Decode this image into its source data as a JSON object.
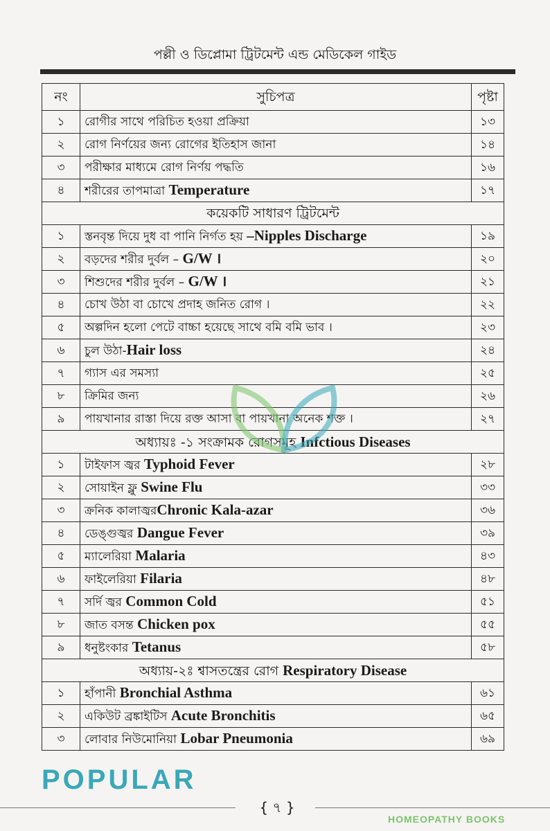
{
  "running_head": "পল্লী ও ডিপ্লোমা ট্রিটমেন্ট এন্ড মেডিকেল গাইড",
  "table_header": {
    "no": "নং",
    "title": "সুচিপত্র",
    "page": "পৃষ্টা"
  },
  "rows": [
    {
      "no": "১",
      "bn": "রোগীর সাথে পরিচিত হওয়া প্রক্রিয়া",
      "en": "",
      "page": "১৩"
    },
    {
      "no": "২",
      "bn": "রোগ নির্ণয়ের জন্য রোগের ইতিহাস জানা",
      "en": "",
      "page": "১৪"
    },
    {
      "no": "৩",
      "bn": "পরীক্ষার মাধ্যমে রোগ নির্ণয় পদ্ধতি",
      "en": "",
      "page": "১৬"
    },
    {
      "no": "৪",
      "bn": "শরীরের তাপমাত্রা ",
      "en": "Temperature",
      "page": "১৭"
    },
    {
      "section": "কয়েকটি সাধারণ ট্রিটমেন্ট"
    },
    {
      "no": "১",
      "bn": "স্তনবৃন্ত দিয়ে দুধ বা পানি নির্গত হয় ",
      "en": "–Nipples Discharge",
      "page": "১৯"
    },
    {
      "no": "২",
      "bn": "বড়দের শরীর দুর্বল – ",
      "en": "G/W ।",
      "page": "২০"
    },
    {
      "no": "৩",
      "bn": "শিশুদের শরীর দুর্বল – ",
      "en": "G/W ।",
      "page": "২১"
    },
    {
      "no": "৪",
      "bn": "চোখ উঠা বা চোখে প্রদাহ জনিত রোগ ।",
      "en": "",
      "page": "২২"
    },
    {
      "no": "৫",
      "bn": "অল্পদিন হলো পেটে বাচ্চা হয়েছে সাথে বমি বমি ভাব ।",
      "en": "",
      "page": "২৩"
    },
    {
      "no": "৬",
      "bn": "চুল উঠা-",
      "en": "Hair loss",
      "page": "২৪"
    },
    {
      "no": "৭",
      "bn": "গ্যাস এর সমস্যা",
      "en": "",
      "page": "২৫"
    },
    {
      "no": "৮",
      "bn": "ক্রিমির জন্য",
      "en": "",
      "page": "২৬"
    },
    {
      "no": "৯",
      "bn": "পায়খানার রাস্তা দিয়ে রক্ত আসা বা পায়খানা অনেক শক্ত ।",
      "en": "",
      "page": "২৭"
    },
    {
      "section": "অধ্যায়ঃ -১ সংক্রামক রোগসমূহ ",
      "section_en": "Infctious Diseases"
    },
    {
      "no": "১",
      "bn": "টাইফাস জ্বর ",
      "en": "Typhoid Fever",
      "page": "২৮"
    },
    {
      "no": "২",
      "bn": "সোয়াইন ফ্লু ",
      "en": "Swine Flu",
      "page": "৩৩"
    },
    {
      "no": "৩",
      "bn": "ক্রনিক কালাজ্বর",
      "en": "Chronic Kala-azar",
      "page": "৩৬"
    },
    {
      "no": "৪",
      "bn": "ডেঙ্গুজ্বর ",
      "en": "Dangue Fever",
      "page": "৩৯"
    },
    {
      "no": "৫",
      "bn": "ম্যালেরিয়া ",
      "en": "Malaria",
      "page": "৪৩"
    },
    {
      "no": "৬",
      "bn": "ফাইলেরিয়া ",
      "en": "Filaria",
      "page": "৪৮"
    },
    {
      "no": "৭",
      "bn": "সর্দি জ্বর ",
      "en": "Common Cold",
      "page": "৫১"
    },
    {
      "no": "৮",
      "bn": "জাত বসন্ত ",
      "en": "Chicken pox",
      "page": "৫৫"
    },
    {
      "no": "৯",
      "bn": "ধনুষ্টংকার ",
      "en": "Tetanus",
      "page": "৫৮"
    },
    {
      "section": "অধ্যায়-২ঃ শ্বাসতন্ত্রের রোগ ",
      "section_en": "Respiratory Disease"
    },
    {
      "no": "১",
      "bn": "হাঁপানী ",
      "en": "Bronchial Asthma",
      "page": "৬১"
    },
    {
      "no": "২",
      "bn": "একিউট ব্রঙ্কাইটিস ",
      "en": "Acute Bronchitis",
      "page": "৬৫"
    },
    {
      "no": "৩",
      "bn": "লোবার নিউমোনিয়া ",
      "en": "Lobar Pneumonia",
      "page": "৬৯"
    }
  ],
  "watermark": {
    "line1": "POPULAR",
    "line2": "HOMEOPATHY BOOKS",
    "colors": [
      "#3aa8b8",
      "#7cc36a"
    ]
  },
  "folio": "৭"
}
